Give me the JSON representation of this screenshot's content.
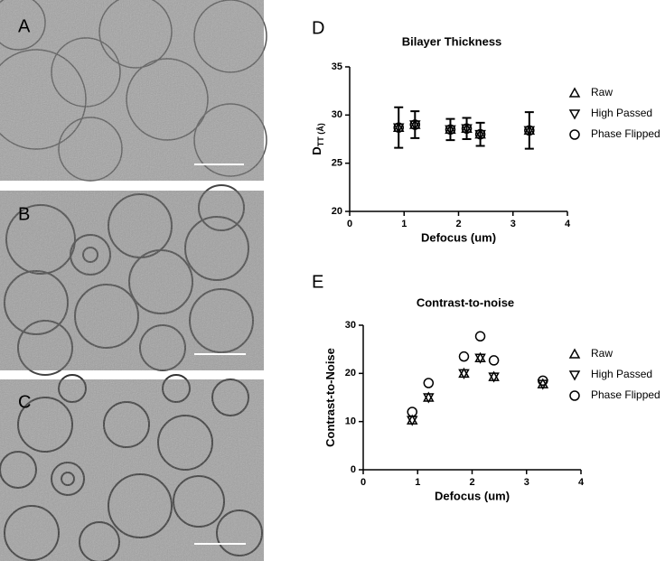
{
  "images": [
    {
      "label": "A"
    },
    {
      "label": "B"
    },
    {
      "label": "C"
    }
  ],
  "chart_data": [
    {
      "type": "scatter",
      "panel": "D",
      "title": "Bilayer Thickness",
      "xlabel": "Defocus (um)",
      "ylabel": "D",
      "ylabel_sub": "TT (Å)",
      "xlim": [
        0,
        4
      ],
      "xticks": [
        0,
        1,
        2,
        3,
        4
      ],
      "ylim": [
        20,
        35
      ],
      "yticks": [
        20,
        25,
        30,
        35
      ],
      "legend": "right",
      "x": [
        0.9,
        1.2,
        1.85,
        2.15,
        2.4,
        3.3
      ],
      "series": [
        {
          "name": "Raw",
          "marker": "triangle-up",
          "color": "#000000",
          "values": [
            28.7,
            29.0,
            28.5,
            28.6,
            28.0,
            28.4
          ],
          "errors": [
            2.1,
            1.4,
            1.1,
            1.1,
            1.2,
            1.9
          ]
        },
        {
          "name": "High Passed",
          "marker": "triangle-down",
          "color": "#000000",
          "values": [
            28.7,
            29.0,
            28.5,
            28.6,
            28.0,
            28.4
          ]
        },
        {
          "name": "Phase Flipped",
          "marker": "circle",
          "color": "#000000",
          "values": [
            28.7,
            29.0,
            28.5,
            28.6,
            28.0,
            28.4
          ]
        }
      ]
    },
    {
      "type": "scatter",
      "panel": "E",
      "title": "Contrast-to-noise",
      "xlabel": "Defocus (um)",
      "ylabel": "Contrast-to-Noise",
      "xlim": [
        0,
        4
      ],
      "xticks": [
        0,
        1,
        2,
        3,
        4
      ],
      "ylim": [
        0,
        30
      ],
      "yticks": [
        0,
        10,
        20,
        30
      ],
      "legend": "right",
      "x": [
        0.9,
        1.2,
        1.85,
        2.15,
        2.4,
        3.3
      ],
      "series": [
        {
          "name": "Raw",
          "marker": "triangle-up",
          "color": "#000000",
          "values": [
            10.3,
            15.0,
            20.0,
            23.2,
            19.3,
            17.8
          ]
        },
        {
          "name": "High Passed",
          "marker": "triangle-down",
          "color": "#000000",
          "values": [
            10.3,
            15.0,
            20.0,
            23.2,
            19.3,
            17.8
          ]
        },
        {
          "name": "Phase Flipped",
          "marker": "circle",
          "color": "#000000",
          "values": [
            12.0,
            18.0,
            23.5,
            27.7,
            22.7,
            18.5
          ]
        }
      ]
    }
  ]
}
